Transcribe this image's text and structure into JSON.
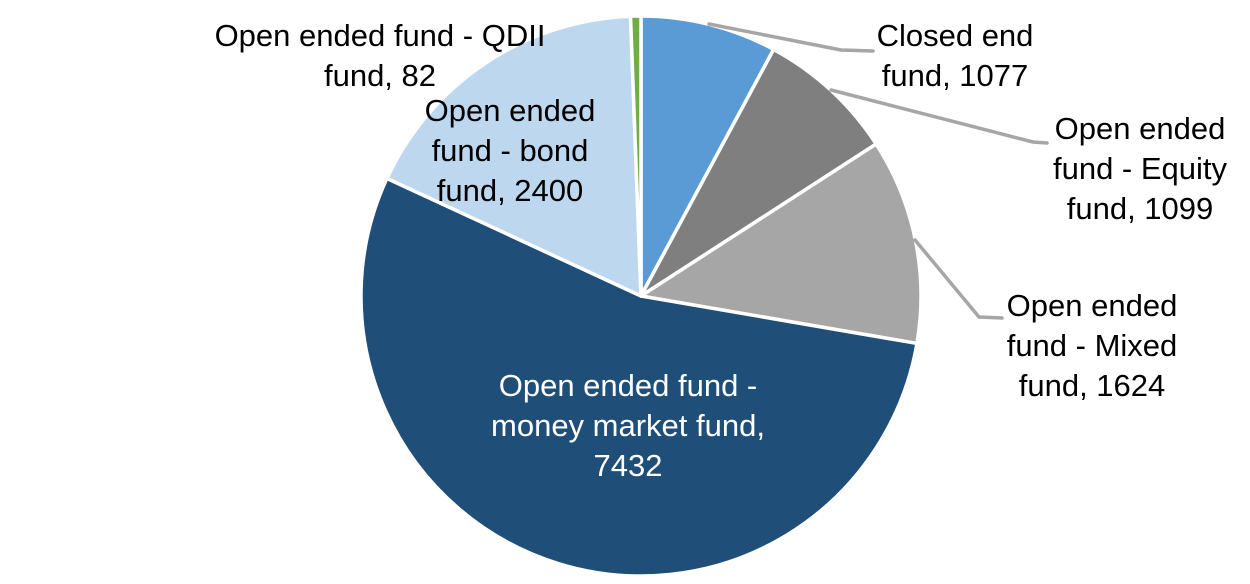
{
  "chart_data": {
    "type": "pie",
    "categories": [
      "Closed end fund",
      "Open ended fund - Equity fund",
      "Open ended fund - Mixed fund",
      "Open ended fund - money market fund",
      "Open ended fund - bond fund",
      "Open ended fund - QDII fund"
    ],
    "values": [
      1077,
      1099,
      1624,
      7432,
      2400,
      82
    ],
    "total": 13714,
    "colors": [
      "#5B9BD5",
      "#7F7F7F",
      "#A6A6A6",
      "#1F4E79",
      "#BDD7EE",
      "#70AD47"
    ],
    "slice_ids": [
      "closed-end-fund",
      "open-ended-equity-fund",
      "open-ended-mixed-fund",
      "open-ended-money-market-fund",
      "open-ended-bond-fund",
      "open-ended-qdii-fund"
    ],
    "data_labels": [
      "Closed end\nfund, 1077",
      "Open ended\nfund - Equity\nfund, 1099",
      "Open ended\nfund - Mixed\nfund, 1624",
      "Open ended fund -\nmoney market fund,\n7432",
      "Open ended\nfund - bond\nfund, 2400",
      "Open ended fund - QDII\nfund, 82"
    ],
    "start_angle_deg": 0,
    "direction": "clockwise",
    "legend_position": "none",
    "slice_border_color": "#FFFFFF",
    "leader_line_color": "#A6A6A6",
    "label_text_color": "#000000",
    "inner_label_text_color": "#FFFFFF",
    "background_color": "#FFFFFF"
  }
}
